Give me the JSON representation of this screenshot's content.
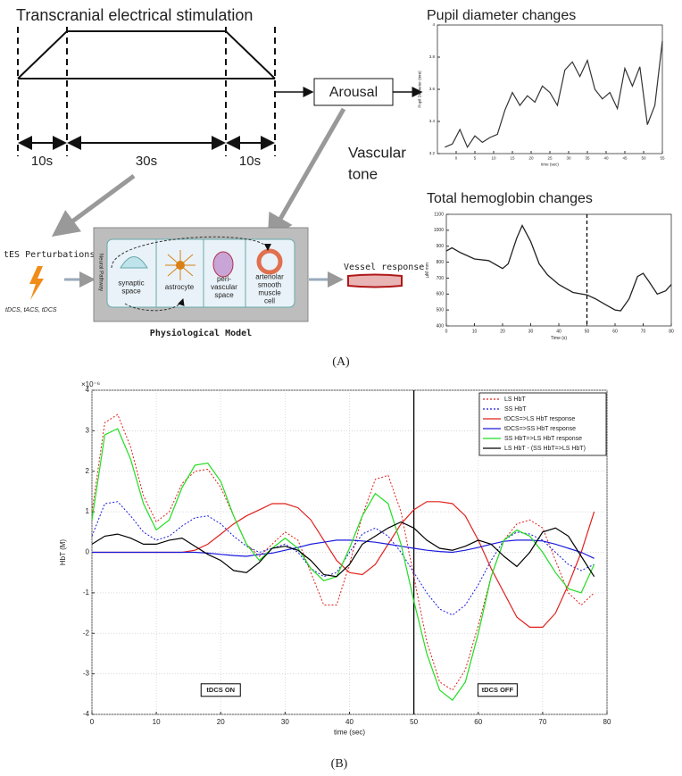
{
  "panel_a": {
    "stim_title": "Transcranial electrical stimulation",
    "durations": [
      "10s",
      "30s",
      "10s"
    ],
    "arousal": "Arousal",
    "vascular_tone": [
      "Vascular",
      "tone"
    ],
    "tes_label": "tES Perturbations",
    "tes_types": "tDCS, tACS, tDCS",
    "model_side_label": "Neural Pathway",
    "cells": [
      [
        "synaptic",
        "space"
      ],
      [
        "astrocyte"
      ],
      [
        "peri-",
        "vascular",
        "space"
      ],
      [
        "arteriolar",
        "smooth",
        "muscle",
        "cell"
      ]
    ],
    "model_title": "Physiological Model",
    "vessel_response": "Vessel response",
    "label": "(A)"
  },
  "panel_b": {
    "label": "(B)"
  },
  "chart_data": [
    {
      "type": "line",
      "title": "Pupil diameter changes",
      "xlabel": "time (sec)",
      "ylabel": "Pupil Diameter (mm)",
      "x": [
        -3,
        -1,
        1,
        3,
        5,
        7,
        9,
        11,
        13,
        15,
        17,
        19,
        21,
        23,
        25,
        27,
        29,
        31,
        33,
        35,
        37,
        39,
        41,
        43,
        45,
        47,
        49,
        51,
        53,
        55
      ],
      "series": [
        {
          "color": "#333333",
          "values": [
            3.24,
            3.26,
            3.35,
            3.24,
            3.31,
            3.27,
            3.3,
            3.32,
            3.47,
            3.58,
            3.5,
            3.56,
            3.52,
            3.62,
            3.58,
            3.5,
            3.72,
            3.77,
            3.68,
            3.78,
            3.6,
            3.54,
            3.58,
            3.48,
            3.73,
            3.62,
            3.74,
            3.38,
            3.5,
            3.9
          ]
        }
      ],
      "xlim": [
        -5,
        55
      ],
      "ylim": [
        3.2,
        4.0
      ],
      "xticks": [
        0,
        5,
        10,
        15,
        20,
        25,
        30,
        35,
        40,
        45,
        50,
        55
      ],
      "yticks": [
        3.2,
        3.4,
        3.6,
        3.8,
        4
      ],
      "grid": false
    },
    {
      "type": "line",
      "title": "Total hemoglobin changes",
      "xlabel": "Time (s)",
      "ylabel": "μM mm",
      "x": [
        0,
        2,
        5,
        10,
        15,
        20,
        22,
        25,
        27,
        30,
        33,
        36,
        40,
        45,
        50,
        53,
        57,
        60,
        62,
        65,
        68,
        70,
        72,
        75,
        78,
        80
      ],
      "series": [
        {
          "color": "#222222",
          "values": [
            870,
            890,
            860,
            820,
            810,
            760,
            790,
            950,
            1030,
            930,
            790,
            720,
            660,
            610,
            595,
            570,
            530,
            500,
            495,
            570,
            710,
            730,
            680,
            600,
            620,
            660
          ]
        }
      ],
      "xlim": [
        0,
        80
      ],
      "ylim": [
        400,
        1100
      ],
      "xticks": [
        0,
        10,
        20,
        30,
        40,
        50,
        60,
        70,
        80
      ],
      "yticks": [
        400,
        500,
        600,
        700,
        800,
        900,
        1000,
        1100
      ],
      "grid": false,
      "vlines": [
        {
          "x": 50,
          "style": "dashed"
        }
      ]
    },
    {
      "type": "line",
      "xlabel": "time (sec)",
      "ylabel": "HbT (M)",
      "y_exponent": "×10⁻⁶",
      "x": [
        0,
        2,
        4,
        6,
        8,
        10,
        12,
        14,
        16,
        18,
        20,
        22,
        24,
        26,
        28,
        30,
        32,
        34,
        36,
        38,
        40,
        42,
        44,
        46,
        48,
        50,
        52,
        54,
        56,
        58,
        60,
        62,
        64,
        66,
        68,
        70,
        72,
        74,
        76,
        78
      ],
      "series": [
        {
          "name": "LS HbT",
          "color": "#e0201b",
          "style": "dotted",
          "values": [
            1.0,
            3.2,
            3.4,
            2.6,
            1.4,
            0.75,
            1.0,
            1.7,
            2.0,
            2.05,
            1.6,
            0.9,
            0.2,
            -0.1,
            0.2,
            0.5,
            0.3,
            -0.5,
            -1.3,
            -1.3,
            -0.3,
            0.9,
            1.8,
            1.9,
            1.0,
            -0.6,
            -2.2,
            -3.2,
            -3.4,
            -2.9,
            -1.8,
            -0.6,
            0.3,
            0.7,
            0.8,
            0.6,
            -0.2,
            -1.0,
            -1.3,
            -1.0
          ]
        },
        {
          "name": "SS HbT",
          "color": "#1a1adb",
          "style": "dotted",
          "values": [
            0.4,
            1.2,
            1.25,
            0.9,
            0.5,
            0.3,
            0.4,
            0.65,
            0.85,
            0.9,
            0.7,
            0.4,
            0.15,
            0.0,
            0.1,
            0.2,
            0.0,
            -0.4,
            -0.6,
            -0.5,
            0.0,
            0.45,
            0.6,
            0.4,
            0.0,
            -0.5,
            -1.0,
            -1.4,
            -1.55,
            -1.3,
            -0.8,
            -0.2,
            0.3,
            0.5,
            0.45,
            0.3,
            0.0,
            -0.3,
            -0.45,
            -0.3
          ]
        },
        {
          "name": "tDCS=>LS HbT response",
          "color": "#e0201b",
          "style": "solid",
          "values": [
            0,
            0,
            0,
            0,
            0,
            0,
            0,
            0,
            0.05,
            0.2,
            0.45,
            0.7,
            0.9,
            1.05,
            1.2,
            1.2,
            1.1,
            0.8,
            0.3,
            -0.2,
            -0.5,
            -0.55,
            -0.3,
            0.2,
            0.7,
            1.05,
            1.25,
            1.25,
            1.2,
            0.9,
            0.3,
            -0.4,
            -1.0,
            -1.6,
            -1.85,
            -1.85,
            -1.5,
            -0.8,
            0.0,
            1.0
          ]
        },
        {
          "name": "tDCS=>SS HbT response",
          "color": "#1a1adb",
          "style": "solid",
          "values": [
            0,
            0,
            0,
            0,
            0,
            0,
            0,
            0,
            0,
            -0.02,
            -0.05,
            -0.08,
            -0.1,
            -0.05,
            -0.02,
            0.05,
            0.12,
            0.2,
            0.25,
            0.3,
            0.3,
            0.28,
            0.25,
            0.2,
            0.15,
            0.1,
            0.05,
            0.02,
            0.0,
            0.05,
            0.12,
            0.2,
            0.27,
            0.3,
            0.3,
            0.28,
            0.2,
            0.1,
            0.0,
            -0.15
          ]
        },
        {
          "name": "SS HbT=>LS HbT response",
          "color": "#22dd22",
          "style": "solid",
          "values": [
            0.8,
            2.9,
            3.05,
            2.3,
            1.2,
            0.55,
            0.8,
            1.6,
            2.15,
            2.2,
            1.75,
            0.9,
            0.2,
            -0.2,
            0.1,
            0.35,
            0.1,
            -0.4,
            -0.7,
            -0.6,
            0.1,
            0.9,
            1.45,
            1.2,
            0.2,
            -1.2,
            -2.5,
            -3.4,
            -3.65,
            -3.2,
            -2.0,
            -0.6,
            0.3,
            0.55,
            0.4,
            0.0,
            -0.5,
            -0.9,
            -1.0,
            -0.3
          ]
        },
        {
          "name": "LS HbT - (SS HbT=>LS HbT)",
          "color": "#000000",
          "style": "solid",
          "values": [
            0.2,
            0.4,
            0.45,
            0.35,
            0.2,
            0.2,
            0.3,
            0.35,
            0.15,
            -0.05,
            -0.2,
            -0.45,
            -0.5,
            -0.25,
            0.1,
            0.15,
            0.05,
            -0.2,
            -0.55,
            -0.6,
            -0.3,
            0.2,
            0.4,
            0.6,
            0.75,
            0.6,
            0.3,
            0.1,
            0.05,
            0.15,
            0.3,
            0.2,
            -0.1,
            -0.35,
            0.0,
            0.5,
            0.6,
            0.4,
            -0.1,
            -0.6
          ]
        }
      ],
      "xlim": [
        0,
        80
      ],
      "ylim": [
        -4,
        4
      ],
      "xticks": [
        0,
        10,
        20,
        30,
        40,
        50,
        60,
        70,
        80
      ],
      "yticks": [
        -4,
        -3,
        -2,
        -1,
        0,
        1,
        2,
        3,
        4
      ],
      "grid": true,
      "legend": "top-right",
      "vlines": [
        {
          "x": 50,
          "style": "solid"
        }
      ],
      "annotations": [
        {
          "text": "tDCS ON",
          "x": 20,
          "y": -3.4
        },
        {
          "text": "tDCS OFF",
          "x": 63,
          "y": -3.4
        }
      ]
    }
  ]
}
